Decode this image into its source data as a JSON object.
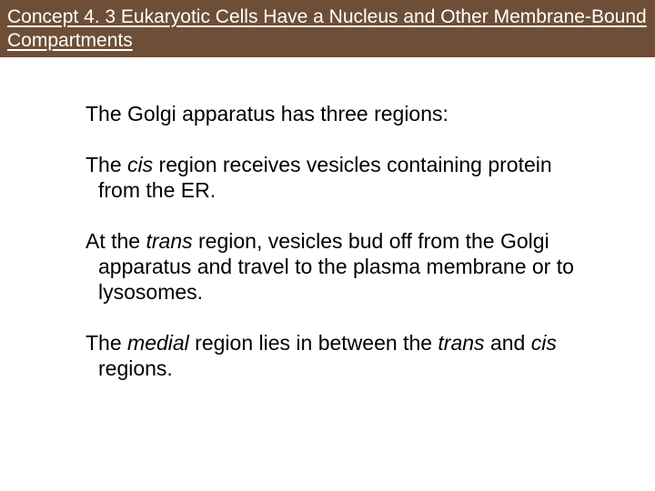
{
  "header": {
    "title": "Concept 4. 3 Eukaryotic Cells Have a Nucleus and Other Membrane-Bound Compartments",
    "bg_color": "#6f4e37",
    "text_color": "#ffffff",
    "fontsize": 21
  },
  "body": {
    "fontsize": 23,
    "text_color": "#000000",
    "paragraphs": [
      {
        "plain": "The Golgi apparatus has three regions:"
      },
      {
        "pre": "The ",
        "ital": "cis",
        "post": " region receives vesicles containing protein from the ER."
      },
      {
        "pre": "At the ",
        "ital": "trans",
        "post": " region, vesicles bud off from the Golgi apparatus and travel to the plasma membrane or to lysosomes."
      },
      {
        "pre": "The ",
        "ital": "medial",
        "post1": " region lies in between the ",
        "ital2": "trans",
        "post2": " and ",
        "ital3": "cis",
        "post3": " regions."
      }
    ]
  }
}
